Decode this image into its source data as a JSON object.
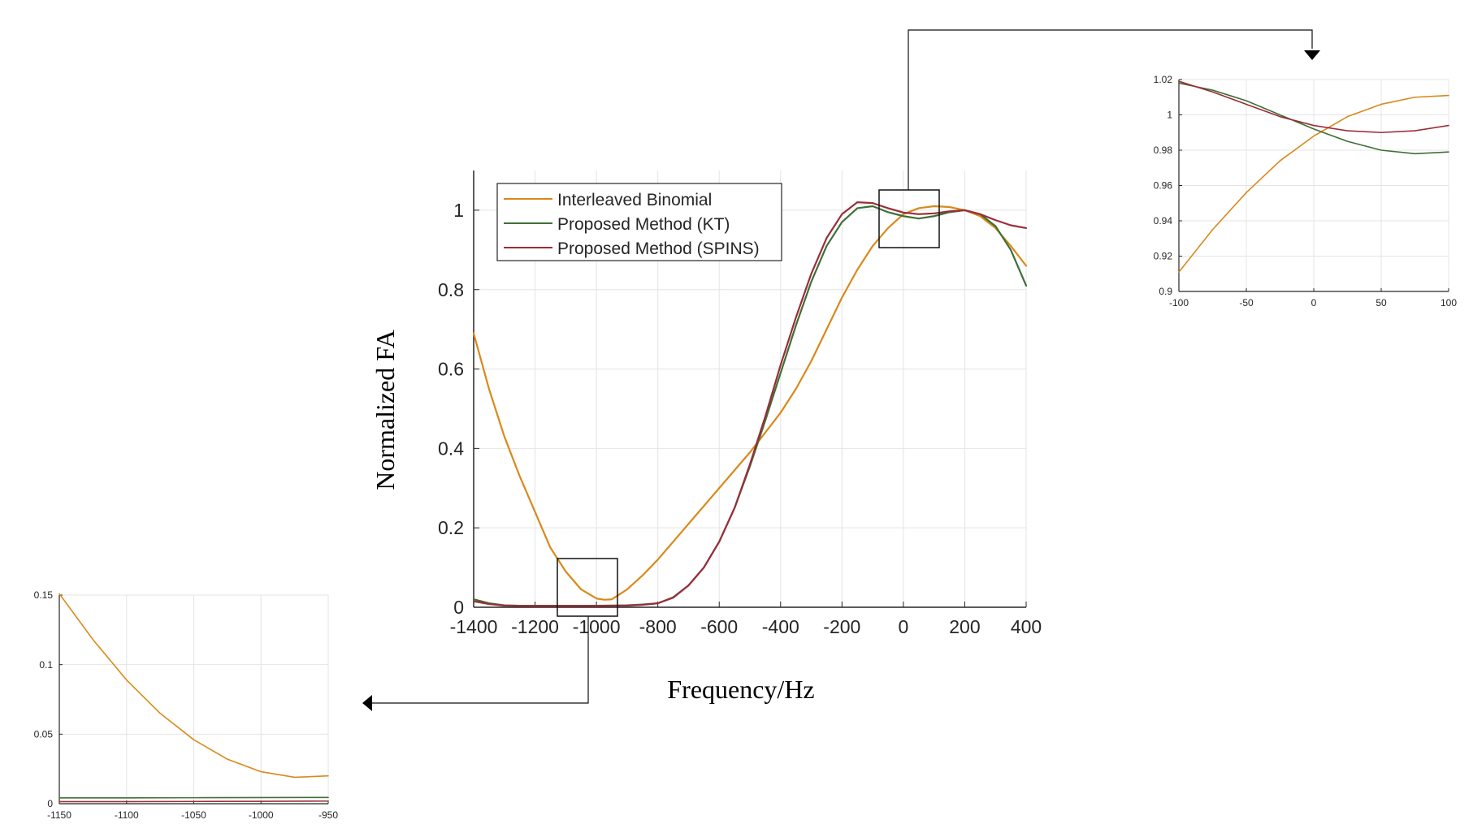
{
  "colors": {
    "interleaved": "#D9891A",
    "kt": "#3E7035",
    "spins": "#9B2D3A",
    "grid": "#E4E4E4",
    "axis": "#262626"
  },
  "chart_data": [
    {
      "id": "main",
      "type": "line",
      "xlabel": "Frequency/Hz",
      "ylabel": "Normalized FA",
      "xlim": [
        -1400,
        400
      ],
      "ylim": [
        0,
        1.1
      ],
      "xticks": [
        -1400,
        -1200,
        -1000,
        -800,
        -600,
        -400,
        -200,
        0,
        200,
        400
      ],
      "xtick_labels": [
        "-1400",
        "-1200",
        "-1000",
        "-800",
        "-600",
        "-400",
        "-200",
        "0",
        "200",
        "400"
      ],
      "yticks": [
        0,
        0.2,
        0.4,
        0.6,
        0.8,
        1
      ],
      "ytick_labels": [
        "0",
        "0.2",
        "0.4",
        "0.6",
        "0.8",
        "1"
      ],
      "grid": true,
      "legend_position": "top-left",
      "series": [
        {
          "name": "Interleaved Binomial",
          "color_key": "interleaved",
          "x": [
            -1400,
            -1350,
            -1300,
            -1250,
            -1200,
            -1150,
            -1100,
            -1050,
            -1000,
            -975,
            -950,
            -900,
            -850,
            -800,
            -750,
            -700,
            -650,
            -600,
            -550,
            -500,
            -450,
            -400,
            -350,
            -300,
            -250,
            -200,
            -150,
            -100,
            -50,
            0,
            50,
            100,
            150,
            200,
            250,
            300,
            350,
            400
          ],
          "y": [
            0.69,
            0.55,
            0.43,
            0.33,
            0.24,
            0.15,
            0.09,
            0.045,
            0.022,
            0.019,
            0.02,
            0.045,
            0.08,
            0.12,
            0.165,
            0.21,
            0.255,
            0.3,
            0.345,
            0.39,
            0.44,
            0.49,
            0.55,
            0.62,
            0.7,
            0.78,
            0.85,
            0.91,
            0.955,
            0.99,
            1.005,
            1.01,
            1.008,
            1.0,
            0.985,
            0.955,
            0.91,
            0.86
          ]
        },
        {
          "name": "Proposed Method (KT)",
          "color_key": "kt",
          "x": [
            -1400,
            -1350,
            -1300,
            -1250,
            -1200,
            -1100,
            -1000,
            -900,
            -850,
            -800,
            -750,
            -700,
            -650,
            -600,
            -550,
            -500,
            -450,
            -400,
            -350,
            -300,
            -250,
            -200,
            -150,
            -100,
            -50,
            0,
            50,
            100,
            150,
            200,
            250,
            300,
            350,
            400
          ],
          "y": [
            0.02,
            0.01,
            0.005,
            0.004,
            0.004,
            0.004,
            0.004,
            0.005,
            0.007,
            0.01,
            0.025,
            0.055,
            0.1,
            0.165,
            0.25,
            0.355,
            0.47,
            0.59,
            0.71,
            0.82,
            0.91,
            0.97,
            1.005,
            1.01,
            0.995,
            0.985,
            0.979,
            0.985,
            0.995,
            1.0,
            0.99,
            0.96,
            0.9,
            0.81
          ]
        },
        {
          "name": "Proposed Method (SPINS)",
          "color_key": "spins",
          "x": [
            -1400,
            -1350,
            -1300,
            -1250,
            -1200,
            -1100,
            -1000,
            -900,
            -850,
            -800,
            -750,
            -700,
            -650,
            -600,
            -550,
            -500,
            -450,
            -400,
            -350,
            -300,
            -250,
            -200,
            -150,
            -100,
            -50,
            0,
            50,
            100,
            150,
            200,
            250,
            300,
            350,
            400
          ],
          "y": [
            0.015,
            0.008,
            0.004,
            0.003,
            0.003,
            0.003,
            0.003,
            0.004,
            0.006,
            0.01,
            0.024,
            0.055,
            0.1,
            0.165,
            0.25,
            0.36,
            0.48,
            0.61,
            0.73,
            0.84,
            0.93,
            0.99,
            1.02,
            1.018,
            1.005,
            0.994,
            0.99,
            0.992,
            0.997,
            1.0,
            0.99,
            0.975,
            0.962,
            0.955
          ]
        }
      ]
    },
    {
      "id": "inset_right",
      "type": "line",
      "xlim": [
        -100,
        100
      ],
      "ylim": [
        0.9,
        1.02
      ],
      "xticks": [
        -100,
        -50,
        0,
        50,
        100
      ],
      "xtick_labels": [
        "-100",
        "-50",
        "0",
        "50",
        "100"
      ],
      "yticks": [
        0.9,
        0.92,
        0.94,
        0.96,
        0.98,
        1,
        1.02
      ],
      "ytick_labels": [
        "0.9",
        "0.92",
        "0.94",
        "0.96",
        "0.98",
        "1",
        "1.02"
      ],
      "grid": true,
      "series": [
        {
          "name": "Interleaved Binomial",
          "color_key": "interleaved",
          "x": [
            -100,
            -75,
            -50,
            -25,
            0,
            25,
            50,
            75,
            100
          ],
          "y": [
            0.911,
            0.935,
            0.956,
            0.974,
            0.988,
            0.999,
            1.006,
            1.01,
            1.011
          ]
        },
        {
          "name": "Proposed Method (KT)",
          "color_key": "kt",
          "x": [
            -100,
            -75,
            -50,
            -25,
            0,
            25,
            50,
            75,
            100
          ],
          "y": [
            1.018,
            1.014,
            1.008,
            1.0,
            0.992,
            0.985,
            0.98,
            0.978,
            0.979
          ]
        },
        {
          "name": "Proposed Method (SPINS)",
          "color_key": "spins",
          "x": [
            -100,
            -75,
            -50,
            -25,
            0,
            25,
            50,
            75,
            100
          ],
          "y": [
            1.019,
            1.013,
            1.006,
            0.999,
            0.994,
            0.991,
            0.99,
            0.991,
            0.994
          ]
        }
      ]
    },
    {
      "id": "inset_left",
      "type": "line",
      "xlim": [
        -1150,
        -950
      ],
      "ylim": [
        0,
        0.15
      ],
      "xticks": [
        -1150,
        -1100,
        -1050,
        -1000,
        -950
      ],
      "xtick_labels": [
        "-1150",
        "-1100",
        "-1050",
        "-1000",
        "-950"
      ],
      "yticks": [
        0,
        0.05,
        0.1,
        0.15
      ],
      "ytick_labels": [
        "0",
        "0.05",
        "0.1",
        "0.15"
      ],
      "grid": true,
      "series": [
        {
          "name": "Interleaved Binomial",
          "color_key": "interleaved",
          "x": [
            -1150,
            -1125,
            -1100,
            -1075,
            -1050,
            -1025,
            -1000,
            -975,
            -950
          ],
          "y": [
            0.151,
            0.118,
            0.089,
            0.065,
            0.046,
            0.032,
            0.023,
            0.019,
            0.02
          ]
        },
        {
          "name": "Proposed Method (KT)",
          "color_key": "kt",
          "x": [
            -1150,
            -1100,
            -1050,
            -1000,
            -950
          ],
          "y": [
            0.0042,
            0.0042,
            0.0043,
            0.0044,
            0.0045
          ]
        },
        {
          "name": "Proposed Method (SPINS)",
          "color_key": "spins",
          "x": [
            -1150,
            -1100,
            -1050,
            -1000,
            -950
          ],
          "y": [
            0.0015,
            0.0015,
            0.0016,
            0.0017,
            0.0019
          ]
        }
      ]
    }
  ]
}
